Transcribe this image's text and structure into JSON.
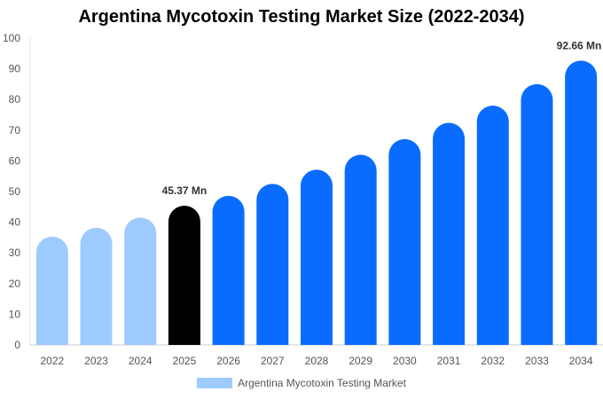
{
  "chart_data": {
    "type": "bar",
    "title": "Argentina Mycotoxin Testing Market Size (2022-2034)",
    "categories": [
      "2022",
      "2023",
      "2024",
      "2025",
      "2026",
      "2027",
      "2028",
      "2029",
      "2030",
      "2031",
      "2032",
      "2033",
      "2034"
    ],
    "series": [
      {
        "name": "Argentina Mycotoxin Testing Market",
        "values": [
          35.3,
          38.2,
          41.5,
          45.37,
          48.6,
          52.5,
          57.1,
          62.0,
          67.1,
          72.4,
          78.0,
          85.0,
          92.66
        ]
      }
    ],
    "data_labels": [
      {
        "category": "2025",
        "text": "45.37 Mn"
      },
      {
        "category": "2034",
        "text": "92.66 Mn"
      }
    ],
    "ylim": [
      0,
      100
    ],
    "yticks": [
      0,
      10,
      20,
      30,
      40,
      50,
      60,
      70,
      80,
      90,
      100
    ],
    "grid": false,
    "legend_position": "bottom-center",
    "colors": {
      "historical": "#9ecbff",
      "current": "#000000",
      "forecast": "#0a6cff",
      "legend_swatch": "#9ecbff",
      "label_text": "#333333",
      "axis_text": "#555555"
    },
    "bar_color_groups": [
      "historical",
      "historical",
      "historical",
      "current",
      "forecast",
      "forecast",
      "forecast",
      "forecast",
      "forecast",
      "forecast",
      "forecast",
      "forecast",
      "forecast"
    ]
  }
}
